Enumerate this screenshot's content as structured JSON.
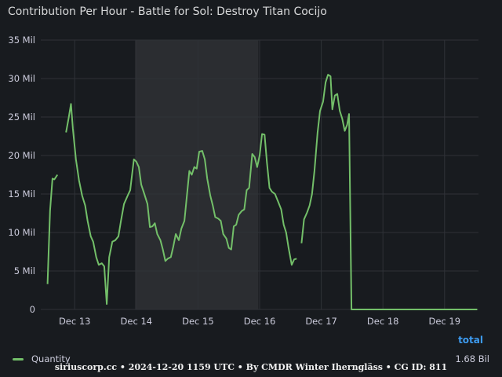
{
  "panel": {
    "title": "Contribution Per Hour - Battle for Sol: Destroy Titan Cocijo",
    "legend_total_header": "total",
    "legend_total_value": "1.68 Bil",
    "credit": "siriuscorp.cc • 2024-12-20 1159 UTC • By CMDR Winter Iherngläss • CG ID: 811"
  },
  "colors": {
    "background": "#181b1f",
    "series": "#73bf69",
    "grid": "#2f3237",
    "highlight": "#2b2d31",
    "axis_text": "#ccccdc",
    "total_header": "#3d9bf0"
  },
  "chart_data": {
    "type": "line",
    "title": "Contribution Per Hour - Battle for Sol: Destroy Titan Cocijo",
    "xlabel": "",
    "ylabel": "",
    "x_unit": "day",
    "x_range": [
      12.45,
      19.55
    ],
    "ylim": [
      0,
      35
    ],
    "y_ticks": [
      0,
      5,
      10,
      15,
      20,
      25,
      30,
      35
    ],
    "y_tick_labels": [
      "0",
      "5 Mil",
      "10 Mil",
      "15 Mil",
      "20 Mil",
      "25 Mil",
      "30 Mil",
      "35 Mil"
    ],
    "x_ticks": [
      13,
      14,
      15,
      16,
      17,
      18,
      19
    ],
    "x_tick_labels": [
      "Dec 13",
      "Dec 14",
      "Dec 15",
      "Dec 16",
      "Dec 17",
      "Dec 18",
      "Dec 19"
    ],
    "highlight_range": [
      13.98,
      15.98
    ],
    "grid": true,
    "legend_position": "bottom",
    "series": [
      {
        "name": "Quantity",
        "color": "#73bf69",
        "unit": "Mil",
        "segments": [
          [
            [
              12.56,
              3.3
            ],
            [
              12.6,
              12.8
            ],
            [
              12.64,
              17.0
            ],
            [
              12.67,
              16.9
            ],
            [
              12.72,
              17.5
            ]
          ],
          [
            [
              12.86,
              23.0
            ],
            [
              12.9,
              24.8
            ],
            [
              12.94,
              26.7
            ],
            [
              12.97,
              23.5
            ],
            [
              13.02,
              19.5
            ],
            [
              13.07,
              16.8
            ],
            [
              13.12,
              14.8
            ],
            [
              13.17,
              13.5
            ],
            [
              13.21,
              11.5
            ],
            [
              13.26,
              9.5
            ],
            [
              13.3,
              8.8
            ],
            [
              13.35,
              6.8
            ],
            [
              13.39,
              5.8
            ],
            [
              13.44,
              6.0
            ],
            [
              13.48,
              5.6
            ],
            [
              13.52,
              0.7
            ],
            [
              13.56,
              6.8
            ],
            [
              13.61,
              8.8
            ],
            [
              13.66,
              9.0
            ],
            [
              13.71,
              9.5
            ],
            [
              13.75,
              11.5
            ],
            [
              13.8,
              13.7
            ],
            [
              13.86,
              14.8
            ],
            [
              13.9,
              15.5
            ],
            [
              13.96,
              19.5
            ],
            [
              14.0,
              19.2
            ],
            [
              14.04,
              18.5
            ],
            [
              14.08,
              16.2
            ],
            [
              14.13,
              15.0
            ],
            [
              14.18,
              13.7
            ],
            [
              14.22,
              10.7
            ],
            [
              14.26,
              10.8
            ],
            [
              14.3,
              11.2
            ],
            [
              14.34,
              9.8
            ],
            [
              14.39,
              9.0
            ],
            [
              14.43,
              7.8
            ],
            [
              14.47,
              6.3
            ],
            [
              14.51,
              6.6
            ],
            [
              14.56,
              6.8
            ],
            [
              14.6,
              8.2
            ],
            [
              14.64,
              9.8
            ],
            [
              14.69,
              9.0
            ],
            [
              14.73,
              10.5
            ],
            [
              14.78,
              11.5
            ],
            [
              14.82,
              14.8
            ],
            [
              14.86,
              18.0
            ],
            [
              14.9,
              17.5
            ],
            [
              14.94,
              18.5
            ],
            [
              14.98,
              18.3
            ],
            [
              15.02,
              20.5
            ],
            [
              15.07,
              20.6
            ],
            [
              15.11,
              19.5
            ],
            [
              15.15,
              17.0
            ],
            [
              15.2,
              14.8
            ],
            [
              15.24,
              13.5
            ],
            [
              15.28,
              12.0
            ],
            [
              15.33,
              11.8
            ],
            [
              15.37,
              11.5
            ],
            [
              15.41,
              9.8
            ],
            [
              15.46,
              9.2
            ],
            [
              15.5,
              8.0
            ],
            [
              15.54,
              7.8
            ],
            [
              15.58,
              10.8
            ],
            [
              15.62,
              11.0
            ],
            [
              15.66,
              12.3
            ],
            [
              15.71,
              12.8
            ],
            [
              15.75,
              13.0
            ],
            [
              15.79,
              15.5
            ],
            [
              15.83,
              15.8
            ],
            [
              15.88,
              20.2
            ],
            [
              15.92,
              19.8
            ],
            [
              15.96,
              18.5
            ],
            [
              16.0,
              20.0
            ],
            [
              16.04,
              22.8
            ],
            [
              16.08,
              22.7
            ],
            [
              16.12,
              19.0
            ],
            [
              16.16,
              15.8
            ],
            [
              16.2,
              15.3
            ],
            [
              16.25,
              15.0
            ],
            [
              16.3,
              14.0
            ],
            [
              16.35,
              13.0
            ],
            [
              16.39,
              11.0
            ],
            [
              16.43,
              10.0
            ],
            [
              16.47,
              8.0
            ],
            [
              16.52,
              5.8
            ],
            [
              16.56,
              6.5
            ],
            [
              16.6,
              6.6
            ]
          ],
          [
            [
              16.68,
              8.6
            ],
            [
              16.72,
              11.7
            ],
            [
              16.77,
              12.6
            ],
            [
              16.81,
              13.5
            ],
            [
              16.85,
              15.0
            ],
            [
              16.89,
              18.0
            ],
            [
              16.94,
              23.0
            ],
            [
              16.98,
              25.8
            ],
            [
              17.03,
              27.0
            ],
            [
              17.07,
              29.5
            ],
            [
              17.11,
              30.5
            ],
            [
              17.15,
              30.3
            ],
            [
              17.18,
              26.0
            ],
            [
              17.22,
              27.8
            ],
            [
              17.26,
              28.0
            ],
            [
              17.3,
              25.8
            ],
            [
              17.34,
              24.8
            ],
            [
              17.38,
              23.2
            ],
            [
              17.42,
              24.0
            ],
            [
              17.45,
              25.4
            ],
            [
              17.49,
              0.0
            ],
            [
              19.53,
              0.0
            ]
          ]
        ]
      }
    ]
  }
}
